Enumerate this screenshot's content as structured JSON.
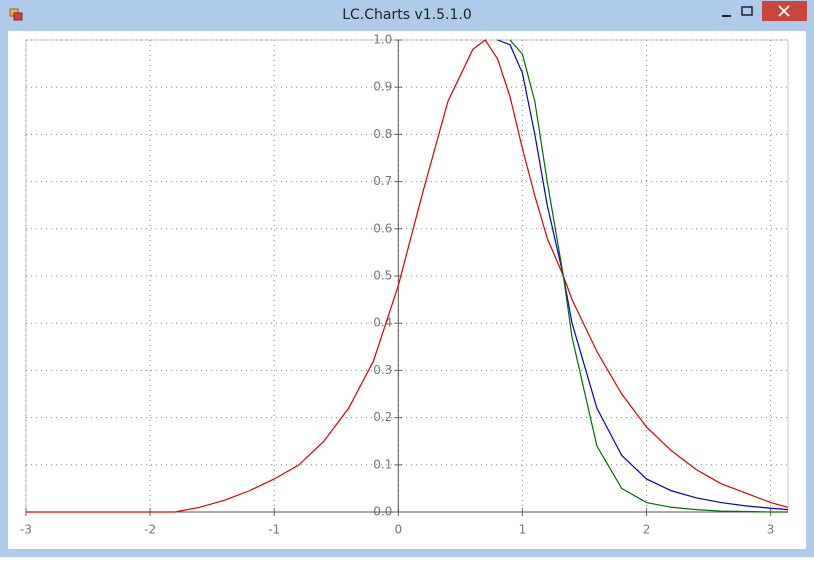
{
  "chart_data": {
    "type": "line",
    "title": "LC.Charts v1.5.1.0",
    "x": [
      -3,
      -2,
      -1.8,
      -1.6,
      -1.4,
      -1.2,
      -1,
      -0.8,
      -0.6,
      -0.4,
      -0.2,
      0,
      0.2,
      0.4,
      0.6,
      0.7,
      0.8,
      0.9,
      1.0,
      1.1,
      1.2,
      1.33,
      1.4,
      1.6,
      1.8,
      2.0,
      2.2,
      2.4,
      2.6,
      2.8,
      3.0,
      3.14
    ],
    "series": [
      {
        "color": "#e00000",
        "values": [
          0,
          0,
          0,
          0.01,
          0.025,
          0.045,
          0.07,
          0.1,
          0.15,
          0.22,
          0.32,
          0.48,
          0.68,
          0.87,
          0.98,
          1.0,
          0.96,
          0.88,
          0.77,
          0.67,
          0.58,
          0.5,
          0.45,
          0.34,
          0.25,
          0.18,
          0.13,
          0.09,
          0.06,
          0.04,
          0.02,
          0.01
        ]
      },
      {
        "color": "#0000d0",
        "values": [
          null,
          null,
          null,
          null,
          null,
          null,
          null,
          null,
          null,
          null,
          null,
          null,
          null,
          null,
          null,
          null,
          1.0,
          0.99,
          0.93,
          0.8,
          0.65,
          0.5,
          0.4,
          0.22,
          0.12,
          0.07,
          0.045,
          0.03,
          0.02,
          0.013,
          0.008,
          0.005
        ]
      },
      {
        "color": "#007000",
        "values": [
          null,
          null,
          null,
          null,
          null,
          null,
          null,
          null,
          null,
          null,
          null,
          null,
          null,
          null,
          null,
          null,
          null,
          1.0,
          0.97,
          0.87,
          0.7,
          0.5,
          0.37,
          0.14,
          0.05,
          0.02,
          0.01,
          0.005,
          0.002,
          0.001,
          0,
          0
        ]
      }
    ],
    "xlim": [
      -3,
      3.14
    ],
    "ylim": [
      0,
      1
    ],
    "xticks": [
      -3,
      -2,
      -1,
      0,
      1,
      2,
      3
    ],
    "yticks": [
      {
        "value": 0,
        "label": "0.0"
      },
      0.1,
      0.2,
      0.3,
      0.4,
      0.5,
      0.6,
      0.7,
      0.8,
      0.9,
      {
        "value": 1,
        "label": "1.0"
      }
    ],
    "grid": true
  }
}
